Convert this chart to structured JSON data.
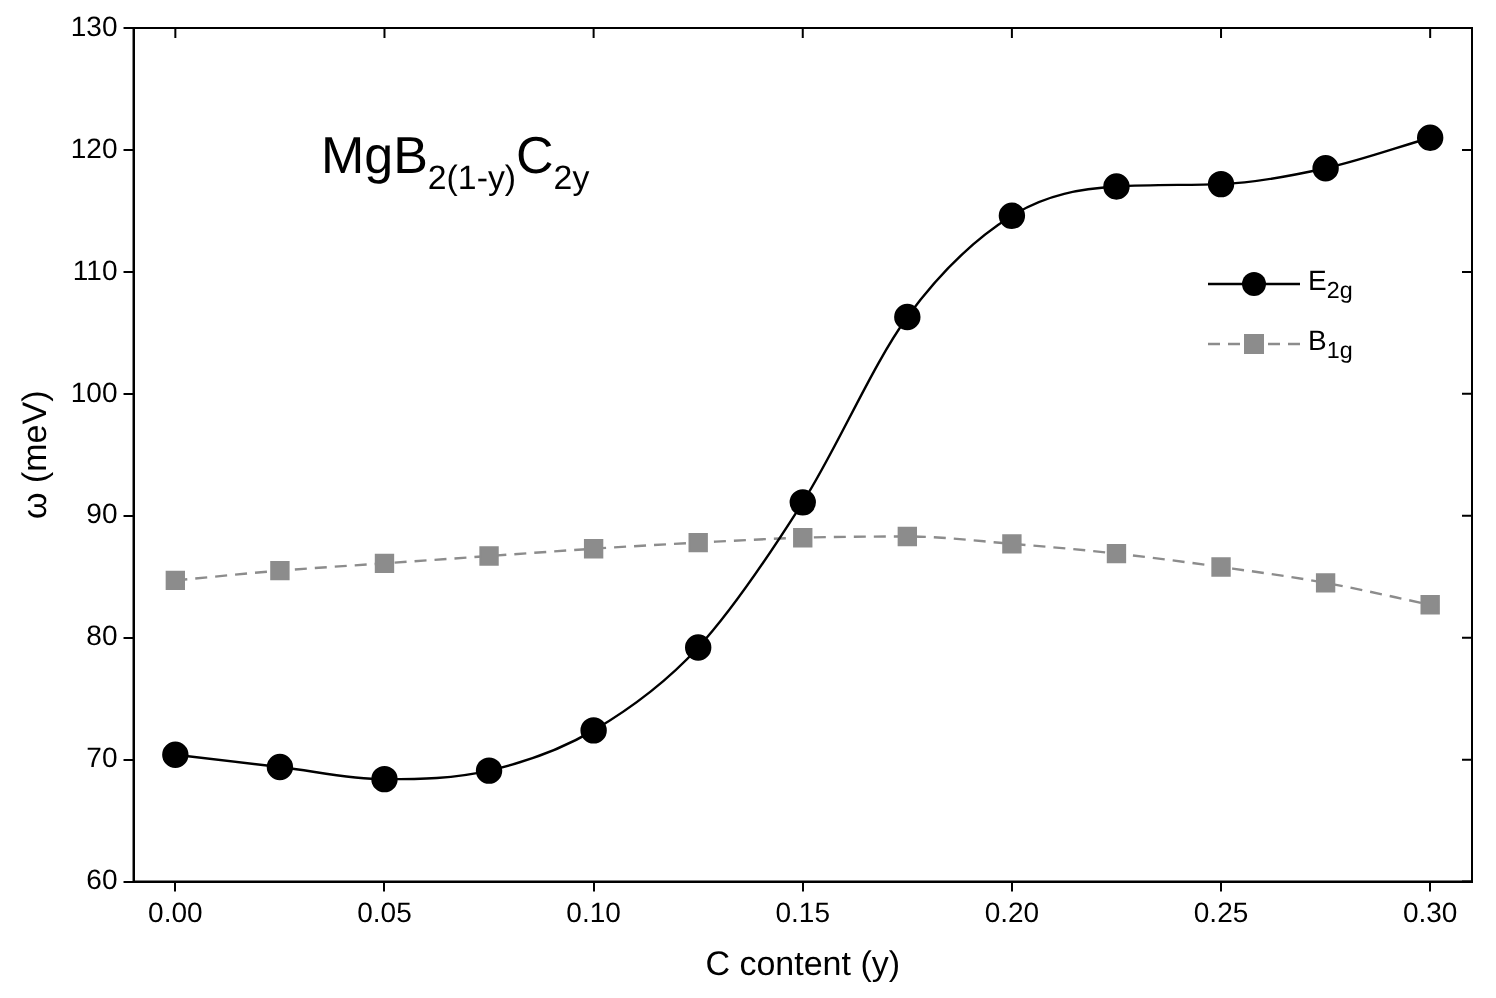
{
  "chart_data": {
    "type": "line",
    "xlabel": "C content (y)",
    "ylabel": "ω (meV)",
    "annotations": [
      "MgB$_{2(1-y)}$C$_{2y}$"
    ],
    "x": [
      0,
      0.025,
      0.05,
      0.075,
      0.1,
      0.125,
      0.15,
      0.175,
      0.2,
      0.225,
      0.25,
      0.275,
      0.3
    ],
    "series": [
      {
        "name": "E$_{2g}$",
        "color": "#000000",
        "marker": "circle",
        "line_style": "solid",
        "values": [
          70.4,
          69.4,
          68.4,
          69.1,
          72.4,
          79.2,
          91.1,
          106.3,
          114.6,
          117,
          117.2,
          118.5,
          121
        ]
      },
      {
        "name": "B$_{1g}$",
        "color": "#8c8c8c",
        "marker": "square",
        "line_style": "dashed",
        "values": [
          84.7,
          85.5,
          86.1,
          86.7,
          87.3,
          87.8,
          88.2,
          88.3,
          87.7,
          86.9,
          85.8,
          84.5,
          82.7
        ]
      }
    ],
    "xlim": [
      -0.01,
      0.31
    ],
    "xticks": [
      {
        "value": 0,
        "label": "0.00"
      },
      0.05,
      {
        "value": 0.1,
        "label": "0.10"
      },
      0.15,
      {
        "value": 0.2,
        "label": "0.20"
      },
      0.25,
      {
        "value": 0.3,
        "label": "0.30"
      }
    ],
    "ylim": [
      60,
      130
    ],
    "yticks": [
      60,
      70,
      80,
      90,
      100,
      110,
      120,
      130
    ],
    "grid": false,
    "legend": "right"
  }
}
